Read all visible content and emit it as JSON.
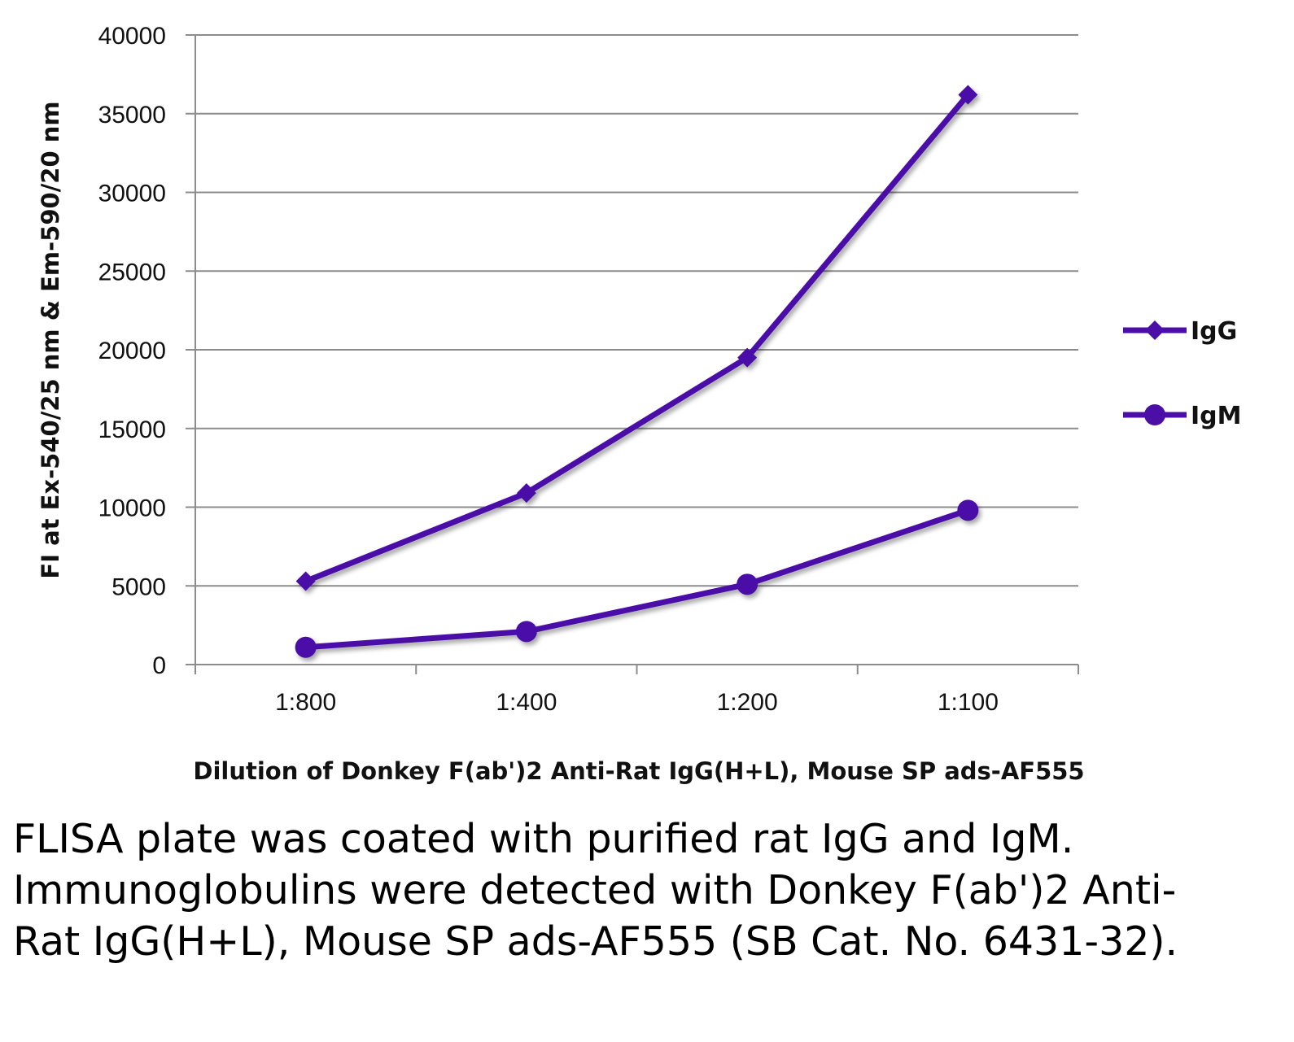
{
  "chart_data": {
    "type": "line",
    "categories": [
      "1:800",
      "1:400",
      "1:200",
      "1:100"
    ],
    "series": [
      {
        "name": "IgG",
        "values": [
          5300,
          10900,
          19500,
          36200
        ],
        "marker": "diamond",
        "color": "#4b0fa8"
      },
      {
        "name": "IgM",
        "values": [
          1100,
          2100,
          5100,
          9800
        ],
        "marker": "circle",
        "color": "#4b0fa8"
      }
    ],
    "title": "",
    "xlabel": "Dilution of Donkey F(ab')2 Anti-Rat IgG(H+L), Mouse SP ads-AF555",
    "ylabel": "FI at Ex-540/25 nm & Em-590/20 nm",
    "ylim": [
      0,
      40000
    ],
    "yticks": [
      0,
      5000,
      10000,
      15000,
      20000,
      25000,
      30000,
      35000,
      40000
    ],
    "grid": true,
    "legend_position": "right"
  },
  "caption": "FLISA plate was coated with purified rat IgG and IgM.  Immunoglobulins were detected with Donkey F(ab')2 Anti-Rat IgG(H+L), Mouse SP ads-AF555 (SB Cat. No. 6431-32)."
}
